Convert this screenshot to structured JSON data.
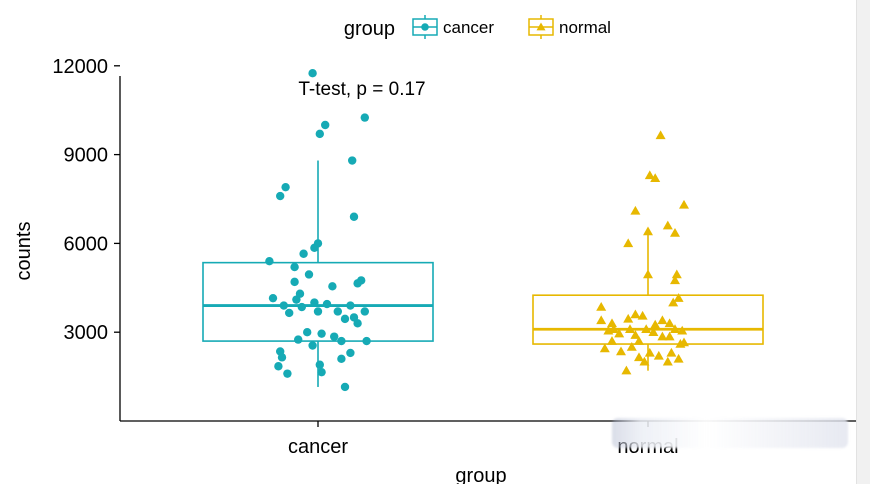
{
  "chart_data": {
    "type": "box",
    "xlabel": "group",
    "ylabel": "counts",
    "annotation": "T-test, p = 0.17",
    "legend": {
      "title": "group",
      "placement": "top",
      "entries": [
        "cancer",
        "normal"
      ]
    },
    "categories": [
      "cancer",
      "normal"
    ],
    "ylim": [
      0,
      12300
    ],
    "yticks": [
      3000,
      6000,
      9000,
      12000
    ],
    "ytick_labels": [
      "3000",
      "6000",
      "9000",
      "12000"
    ],
    "grid": false,
    "series": [
      {
        "name": "cancer",
        "color": "#16aab5",
        "marker": "circle",
        "box": {
          "whisker_low": 1150,
          "q1": 2700,
          "median": 3900,
          "q3": 5350,
          "whisker_high": 8800
        },
        "points": [
          [
            -0.03,
            11750
          ],
          [
            0.26,
            10250
          ],
          [
            0.04,
            10000
          ],
          [
            0.01,
            9700
          ],
          [
            0.19,
            8800
          ],
          [
            -0.18,
            7900
          ],
          [
            -0.21,
            7600
          ],
          [
            0.2,
            6900
          ],
          [
            0.0,
            6000
          ],
          [
            -0.02,
            5850
          ],
          [
            -0.27,
            5400
          ],
          [
            -0.13,
            5200
          ],
          [
            -0.08,
            5650
          ],
          [
            -0.13,
            4700
          ],
          [
            -0.1,
            4300
          ],
          [
            -0.05,
            4950
          ],
          [
            0.08,
            4550
          ],
          [
            0.24,
            4750
          ],
          [
            0.22,
            4650
          ],
          [
            -0.25,
            4150
          ],
          [
            -0.19,
            3900
          ],
          [
            -0.12,
            4100
          ],
          [
            -0.09,
            3850
          ],
          [
            -0.02,
            4000
          ],
          [
            0.05,
            3950
          ],
          [
            0.11,
            3700
          ],
          [
            0.18,
            3900
          ],
          [
            0.26,
            3700
          ],
          [
            0.22,
            3300
          ],
          [
            0.2,
            3500
          ],
          [
            0.15,
            3450
          ],
          [
            -0.16,
            3650
          ],
          [
            0.0,
            3700
          ],
          [
            -0.06,
            3000
          ],
          [
            0.02,
            2950
          ],
          [
            0.09,
            2850
          ],
          [
            -0.11,
            2750
          ],
          [
            -0.03,
            2550
          ],
          [
            0.13,
            2700
          ],
          [
            0.27,
            2700
          ],
          [
            -0.21,
            2350
          ],
          [
            -0.2,
            2150
          ],
          [
            0.01,
            1900
          ],
          [
            0.18,
            2300
          ],
          [
            -0.22,
            1850
          ],
          [
            -0.17,
            1600
          ],
          [
            0.13,
            2100
          ],
          [
            0.02,
            1650
          ],
          [
            0.15,
            1150
          ]
        ]
      },
      {
        "name": "normal",
        "color": "#e7b800",
        "marker": "triangle",
        "box": {
          "whisker_low": 1700,
          "q1": 2600,
          "median": 3100,
          "q3": 4250,
          "whisker_high": 6400
        },
        "points": [
          [
            0.07,
            9650
          ],
          [
            0.01,
            8300
          ],
          [
            0.04,
            8200
          ],
          [
            0.2,
            7300
          ],
          [
            -0.07,
            7100
          ],
          [
            0.11,
            6600
          ],
          [
            0.0,
            6400
          ],
          [
            -0.11,
            6000
          ],
          [
            0.15,
            6350
          ],
          [
            0.16,
            4950
          ],
          [
            0.15,
            4750
          ],
          [
            0.0,
            4950
          ],
          [
            0.17,
            4150
          ],
          [
            0.14,
            4000
          ],
          [
            -0.26,
            3850
          ],
          [
            -0.26,
            3400
          ],
          [
            -0.2,
            3300
          ],
          [
            -0.11,
            3450
          ],
          [
            -0.07,
            3600
          ],
          [
            -0.03,
            3550
          ],
          [
            0.04,
            3250
          ],
          [
            0.08,
            3400
          ],
          [
            0.12,
            3300
          ],
          [
            0.15,
            3100
          ],
          [
            0.19,
            3050
          ],
          [
            -0.22,
            3050
          ],
          [
            -0.19,
            3100
          ],
          [
            -0.16,
            2950
          ],
          [
            -0.1,
            3100
          ],
          [
            -0.07,
            2900
          ],
          [
            -0.05,
            2700
          ],
          [
            -0.01,
            3100
          ],
          [
            0.03,
            3000
          ],
          [
            0.08,
            2850
          ],
          [
            0.12,
            2850
          ],
          [
            0.18,
            2600
          ],
          [
            0.2,
            2650
          ],
          [
            -0.24,
            2450
          ],
          [
            -0.2,
            2700
          ],
          [
            -0.15,
            2350
          ],
          [
            -0.09,
            2500
          ],
          [
            -0.05,
            2150
          ],
          [
            0.01,
            2300
          ],
          [
            0.06,
            2200
          ],
          [
            0.13,
            2300
          ],
          [
            0.17,
            2100
          ],
          [
            0.11,
            2000
          ],
          [
            -0.02,
            2000
          ],
          [
            -0.12,
            1700
          ]
        ]
      }
    ]
  }
}
